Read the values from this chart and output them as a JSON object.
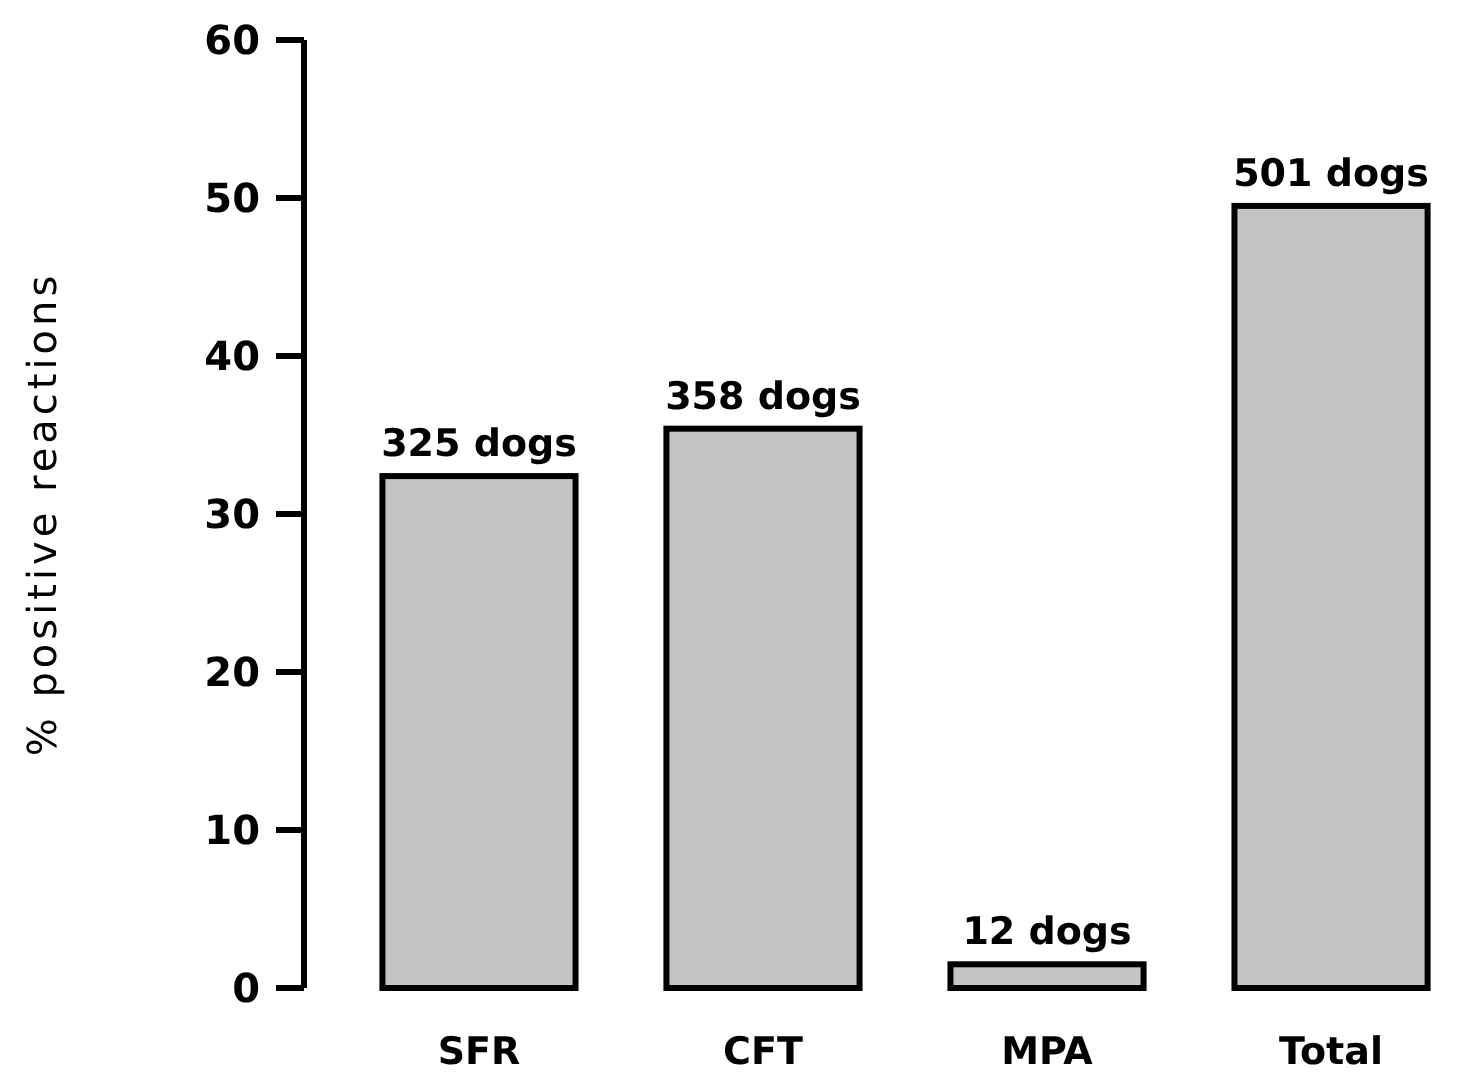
{
  "chart_data": {
    "type": "bar",
    "ylabel": "% positive reactions",
    "categories": [
      "SFR",
      "CFT",
      "MPA",
      "Total"
    ],
    "values": [
      32.4,
      35.4,
      1.5,
      49.5
    ],
    "color": "#c4c4c4",
    "ylim": [
      0,
      60
    ],
    "yticks": [
      0,
      10,
      20,
      30,
      40,
      50,
      60
    ],
    "grid": false,
    "annotations": [
      {
        "text": "325 dogs",
        "x": "SFR",
        "y": 32.4
      },
      {
        "text": "358 dogs",
        "x": "CFT",
        "y": 35.4
      },
      {
        "text": "12 dogs",
        "x": "MPA",
        "y": 1.5
      },
      {
        "text": "501 dogs",
        "x": "Total",
        "y": 49.5
      }
    ]
  }
}
